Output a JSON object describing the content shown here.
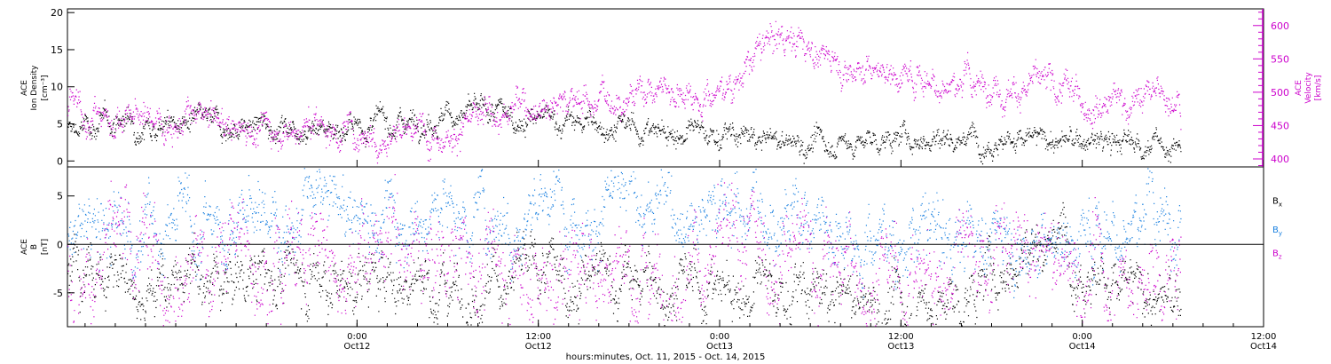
{
  "colors": {
    "density": "#000000",
    "velocity": "#cc00cc",
    "bx": "#000000",
    "by": "#1a80e0",
    "bz": "#cc00cc",
    "frame": "#000000"
  },
  "time_axis": {
    "start": "2015-10-11T04:50",
    "end": "2015-10-14T12:00",
    "ticks": [
      {
        "time": "2015-10-12T00:00",
        "label1": "0:00",
        "label2": "Oct12"
      },
      {
        "time": "2015-10-12T12:00",
        "label1": "12:00",
        "label2": "Oct12"
      },
      {
        "time": "2015-10-13T00:00",
        "label1": "0:00",
        "label2": "Oct13"
      },
      {
        "time": "2015-10-13T12:00",
        "label1": "12:00",
        "label2": "Oct13"
      },
      {
        "time": "2015-10-14T00:00",
        "label1": "0:00",
        "label2": "Oct14"
      },
      {
        "time": "2015-10-14T12:00",
        "label1": "12:00",
        "label2": "Oct14"
      }
    ],
    "xlabel": "hours:minutes, Oct. 11, 2015 - Oct. 14, 2015"
  },
  "chart_data": [
    {
      "type": "scatter",
      "panel": "plasma",
      "left_axis": {
        "label_lines": [
          "ACE",
          "Ion Density",
          "[cm⁻³]"
        ],
        "ylim": [
          -0.8,
          20.5
        ],
        "ticks": [
          0,
          5,
          10,
          15,
          20
        ]
      },
      "right_axis": {
        "label_lines": [
          "ACE",
          "Velocity",
          "[km/s]"
        ],
        "ylim": [
          388,
          625
        ],
        "ticks": [
          400,
          450,
          500,
          550,
          600
        ]
      },
      "series": [
        {
          "name": "Ion Density",
          "axis": "left",
          "color_key": "density",
          "x": [
            "2015-10-11T04:50",
            "2015-10-11T08:00",
            "2015-10-11T12:00",
            "2015-10-11T16:00",
            "2015-10-11T20:00",
            "2015-10-12T00:00",
            "2015-10-12T04:00",
            "2015-10-12T08:00",
            "2015-10-12T12:00",
            "2015-10-12T16:00",
            "2015-10-12T20:00",
            "2015-10-13T00:00",
            "2015-10-13T04:00",
            "2015-10-13T08:00",
            "2015-10-13T12:00",
            "2015-10-13T16:00",
            "2015-10-13T20:00",
            "2015-10-14T00:00",
            "2015-10-14T04:00",
            "2015-10-14T06:30"
          ],
          "values": [
            4.0,
            5.5,
            5.2,
            4.5,
            5.0,
            4.5,
            6.0,
            6.5,
            5.5,
            5.0,
            4.0,
            3.5,
            2.5,
            2.5,
            3.0,
            3.5,
            3.0,
            2.5,
            2.5,
            2.0
          ],
          "spread": 1.2
        },
        {
          "name": "Velocity",
          "axis": "right",
          "color_key": "velocity",
          "x": [
            "2015-10-11T04:50",
            "2015-10-11T08:00",
            "2015-10-11T12:00",
            "2015-10-11T16:00",
            "2015-10-11T20:00",
            "2015-10-12T00:00",
            "2015-10-12T04:00",
            "2015-10-12T08:00",
            "2015-10-12T12:00",
            "2015-10-12T16:00",
            "2015-10-12T20:00",
            "2015-10-13T00:00",
            "2015-10-13T04:00",
            "2015-10-13T08:00",
            "2015-10-13T12:00",
            "2015-10-13T16:00",
            "2015-10-13T20:00",
            "2015-10-14T00:00",
            "2015-10-14T04:00",
            "2015-10-14T06:30"
          ],
          "values": [
            470,
            465,
            460,
            450,
            450,
            445,
            440,
            455,
            490,
            490,
            510,
            500,
            590,
            545,
            530,
            515,
            510,
            495,
            490,
            505
          ],
          "spread": 18
        }
      ]
    },
    {
      "type": "scatter",
      "panel": "magnetic",
      "left_axis": {
        "label_lines": [
          "ACE",
          "B",
          "[nT]"
        ],
        "ylim": [
          -8.5,
          8.0
        ],
        "ticks": [
          -5,
          0,
          5
        ]
      },
      "zero_line": 0,
      "legend": [
        {
          "name": "B",
          "sub": "x",
          "color_key": "bx",
          "y": 4.2
        },
        {
          "name": "B",
          "sub": "y",
          "color_key": "by",
          "y": 1.2
        },
        {
          "name": "B",
          "sub": "z",
          "color_key": "bz",
          "y": -1.2
        }
      ],
      "series": [
        {
          "name": "Bx",
          "color_key": "bx",
          "x": [
            "2015-10-11T04:50",
            "2015-10-11T12:00",
            "2015-10-11T20:00",
            "2015-10-12T04:00",
            "2015-10-12T12:00",
            "2015-10-12T20:00",
            "2015-10-13T04:00",
            "2015-10-13T12:00",
            "2015-10-13T16:00",
            "2015-10-13T22:00",
            "2015-10-14T02:00",
            "2015-10-14T06:30"
          ],
          "values": [
            -2.5,
            -4.0,
            -3.0,
            -4.0,
            -3.5,
            -4.0,
            -5.0,
            -6.5,
            -6.0,
            2.0,
            -4.0,
            -6.5
          ],
          "spread": 2.2
        },
        {
          "name": "By",
          "color_key": "by",
          "x": [
            "2015-10-11T04:50",
            "2015-10-11T12:00",
            "2015-10-11T20:00",
            "2015-10-12T04:00",
            "2015-10-12T12:00",
            "2015-10-12T20:00",
            "2015-10-13T04:00",
            "2015-10-13T12:00",
            "2015-10-13T18:00",
            "2015-10-13T22:00",
            "2015-10-14T04:00",
            "2015-10-14T06:30"
          ],
          "values": [
            1.0,
            2.0,
            3.5,
            3.5,
            4.0,
            4.5,
            4.0,
            0.5,
            1.5,
            0.5,
            3.5,
            2.5
          ],
          "spread": 2.8
        },
        {
          "name": "Bz",
          "color_key": "bz",
          "x": [
            "2015-10-11T04:50",
            "2015-10-11T12:00",
            "2015-10-11T20:00",
            "2015-10-12T04:00",
            "2015-10-12T12:00",
            "2015-10-12T20:00",
            "2015-10-13T04:00",
            "2015-10-13T12:00",
            "2015-10-13T18:00",
            "2015-10-13T22:00",
            "2015-10-14T04:00",
            "2015-10-14T06:30"
          ],
          "values": [
            -2.0,
            -1.5,
            0.0,
            -1.0,
            -3.0,
            -2.0,
            -1.0,
            -4.0,
            -1.0,
            -2.0,
            -4.5,
            -2.0
          ],
          "spread": 3.5
        }
      ]
    }
  ]
}
